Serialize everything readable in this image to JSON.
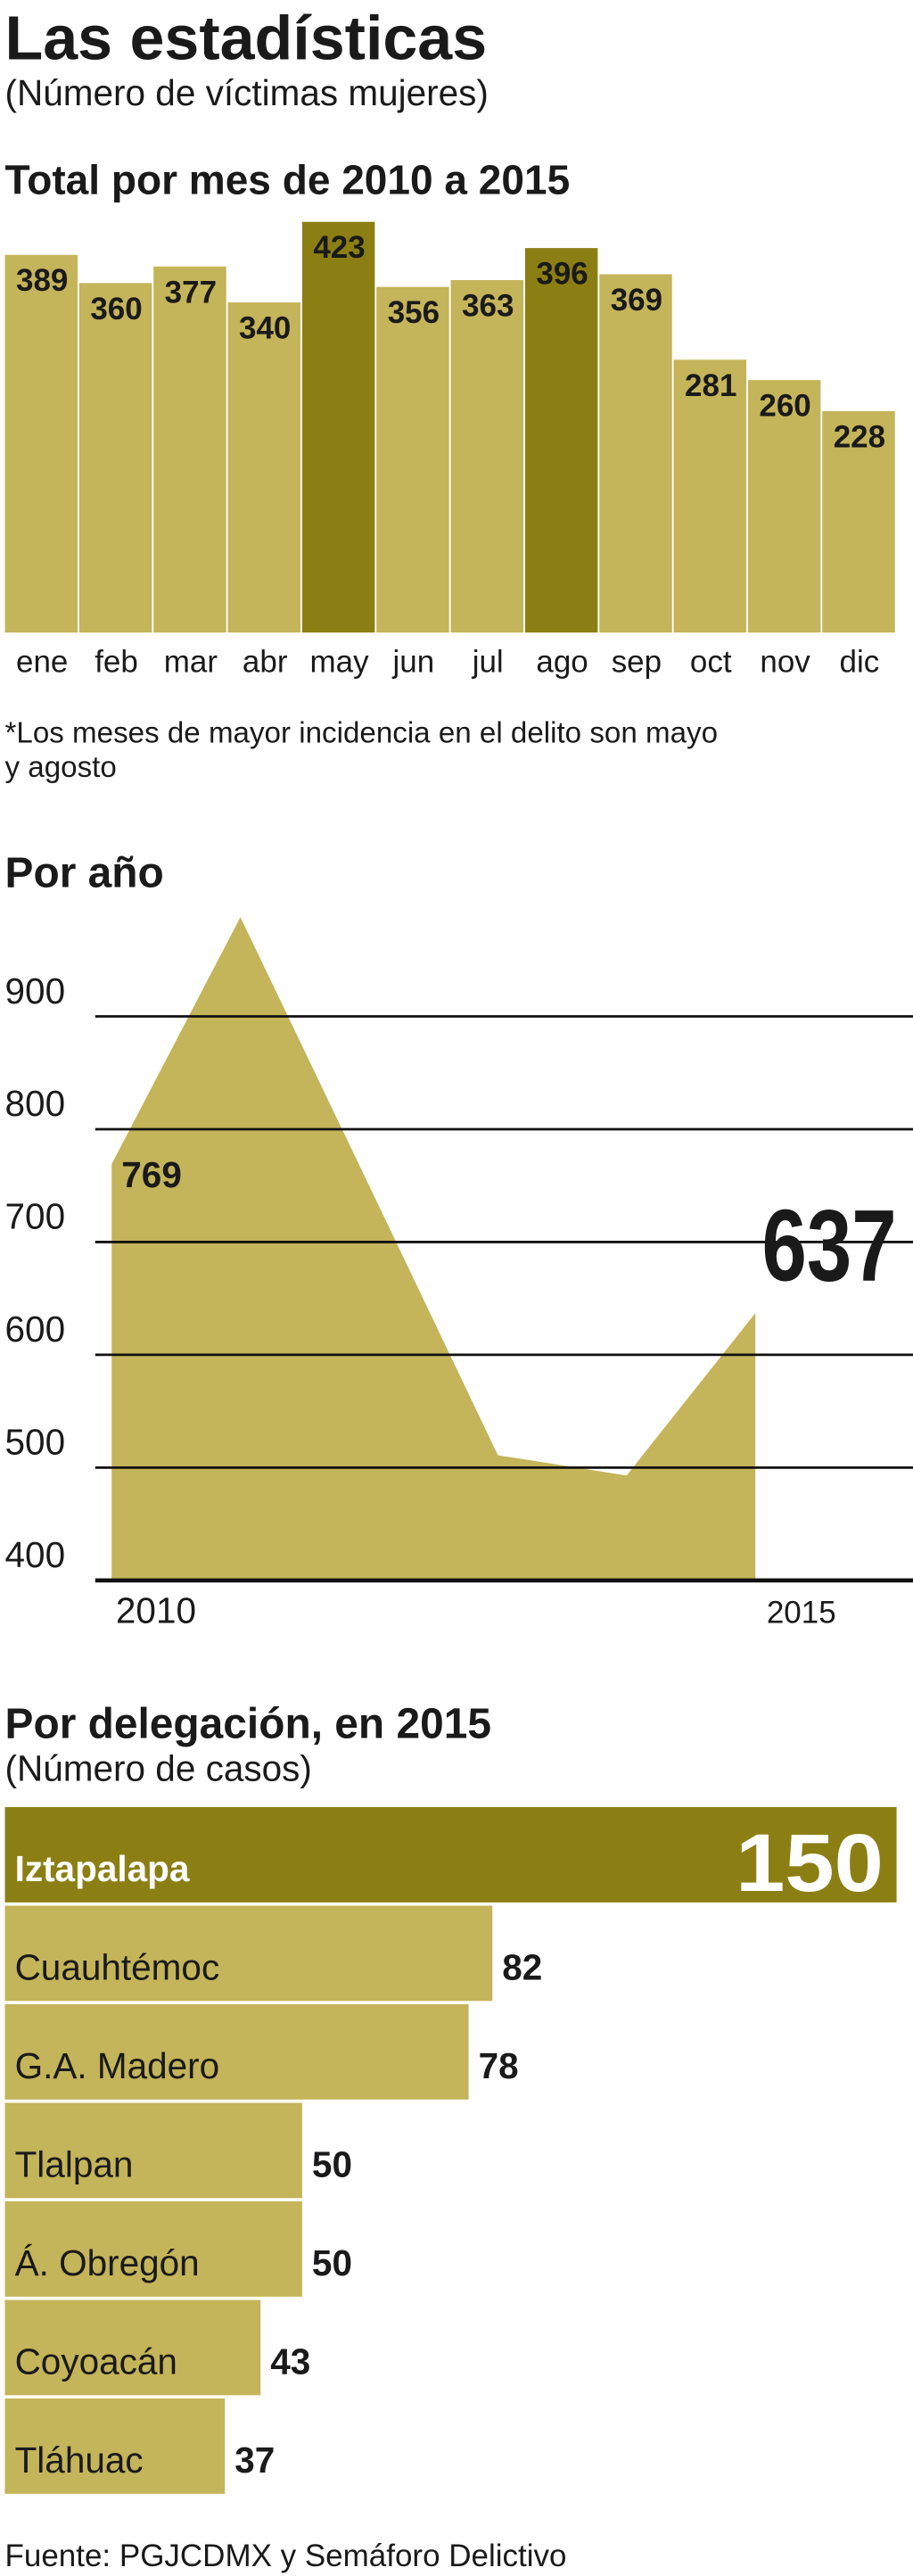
{
  "title": "Las estadísticas",
  "subtitle": "(Número de víctimas mujeres)",
  "chart_data": [
    {
      "type": "bar",
      "title": "Total por mes de 2010 a 2015",
      "categories": [
        "ene",
        "feb",
        "mar",
        "abr",
        "may",
        "jun",
        "jul",
        "ago",
        "sep",
        "oct",
        "nov",
        "dic"
      ],
      "values": [
        389,
        360,
        377,
        340,
        423,
        356,
        363,
        396,
        369,
        281,
        260,
        228
      ],
      "colors": [
        "#c4b45a",
        "#c4b45a",
        "#c4b45a",
        "#c4b45a",
        "#8b7f14",
        "#c4b45a",
        "#c4b45a",
        "#8b7f14",
        "#c4b45a",
        "#c4b45a",
        "#c4b45a",
        "#c4b45a"
      ],
      "note": [
        "*Los meses de mayor incidencia en el delito son mayo",
        "y agosto"
      ]
    },
    {
      "type": "area",
      "title": "Por año",
      "color": "#c4b45a",
      "x": [
        2010,
        2011,
        2012,
        2013,
        2014,
        2015
      ],
      "values": [
        769,
        988,
        750,
        511,
        493,
        637
      ],
      "value_labels": [
        "769",
        null,
        null,
        null,
        null,
        "637"
      ],
      "xlim": [
        2010,
        2015
      ],
      "xticks": [
        2010,
        2015
      ],
      "ylim": [
        400,
        1000
      ],
      "yticks": [
        400,
        500,
        600,
        700,
        800,
        900
      ],
      "grid": true
    },
    {
      "type": "hbar",
      "title": "Por delegación, en 2015",
      "subtitle": "(Número de casos)",
      "categories": [
        "Iztapalapa",
        "Cuauhtémoc",
        "G.A. Madero",
        "Tlalpan",
        "Á. Obregón",
        "Coyoacán",
        "Tláhuac"
      ],
      "values": [
        150,
        82,
        78,
        50,
        50,
        43,
        37
      ],
      "colors": [
        "#8b7f14",
        "#c4b45a",
        "#c4b45a",
        "#c4b45a",
        "#c4b45a",
        "#c4b45a",
        "#c4b45a"
      ]
    }
  ],
  "source": "Fuente: PGJCDMX y Semáforo Delictivo"
}
